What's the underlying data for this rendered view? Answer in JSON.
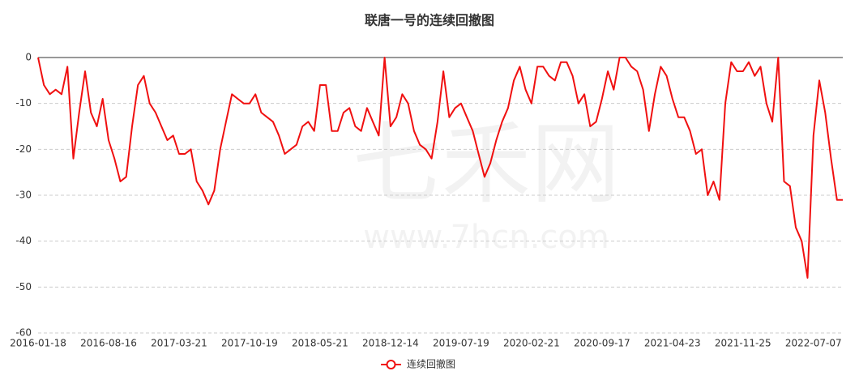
{
  "chart_data": {
    "type": "line",
    "title": "联唐一号的连续回撤图",
    "watermark": "七禾网",
    "watermark_url": "www.7hcn.com",
    "categories": [
      "2016-01-18",
      null,
      null,
      null,
      null,
      null,
      null,
      null,
      null,
      null,
      null,
      null,
      "2016-08-16",
      null,
      null,
      null,
      null,
      null,
      null,
      null,
      null,
      null,
      null,
      null,
      "2017-03-21",
      null,
      null,
      null,
      null,
      null,
      null,
      null,
      null,
      null,
      null,
      null,
      "2017-10-19",
      null,
      null,
      null,
      null,
      null,
      null,
      null,
      null,
      null,
      null,
      null,
      "2018-05-21",
      null,
      null,
      null,
      null,
      null,
      null,
      null,
      null,
      null,
      null,
      null,
      "2018-12-14",
      null,
      null,
      null,
      null,
      null,
      null,
      null,
      null,
      null,
      null,
      null,
      "2019-07-19",
      null,
      null,
      null,
      null,
      null,
      null,
      null,
      null,
      null,
      null,
      null,
      "2020-02-21",
      null,
      null,
      null,
      null,
      null,
      null,
      null,
      null,
      null,
      null,
      null,
      "2020-09-17",
      null,
      null,
      null,
      null,
      null,
      null,
      null,
      null,
      null,
      null,
      null,
      "2021-04-23",
      null,
      null,
      null,
      null,
      null,
      null,
      null,
      null,
      null,
      null,
      null,
      "2021-11-25",
      null,
      null,
      null,
      null,
      null,
      null,
      null,
      null,
      null,
      null,
      null,
      "2022-07-07",
      null,
      null,
      null,
      null,
      null
    ],
    "series": [
      {
        "name": "连续回撤图",
        "color": "#f01010",
        "values": [
          0,
          -6,
          -8,
          -7,
          -8,
          -2,
          -22,
          -12,
          -3,
          -12,
          -15,
          -9,
          -18,
          -22,
          -27,
          -26,
          -15,
          -6,
          -4,
          -10,
          -12,
          -15,
          -18,
          -17,
          -21,
          -21,
          -20,
          -27,
          -29,
          -32,
          -29,
          -20,
          -14,
          -8,
          -9,
          -10,
          -10,
          -8,
          -12,
          -13,
          -14,
          -17,
          -21,
          -20,
          -19,
          -15,
          -14,
          -16,
          -6,
          -6,
          -16,
          -16,
          -12,
          -11,
          -15,
          -16,
          -11,
          -14,
          -17,
          0,
          -15,
          -13,
          -8,
          -10,
          -16,
          -19,
          -20,
          -22,
          -14,
          -3,
          -13,
          -11,
          -10,
          -13,
          -16,
          -21,
          -26,
          -23,
          -18,
          -14,
          -11,
          -5,
          -2,
          -7,
          -10,
          -2,
          -2,
          -4,
          -5,
          -1,
          -1,
          -4,
          -10,
          -8,
          -15,
          -14,
          -9,
          -3,
          -7,
          0,
          0,
          -2,
          -3,
          -7,
          -16,
          -8,
          -2,
          -4,
          -9,
          -13,
          -13,
          -16,
          -21,
          -20,
          -30,
          -27,
          -31,
          -10,
          -1,
          -3,
          -3,
          -1,
          -4,
          -2,
          -10,
          -14,
          0,
          -27,
          -28,
          -37,
          -40,
          -48,
          -17,
          -5,
          -12,
          -22,
          -31,
          -31
        ]
      }
    ],
    "ylim": [
      -60,
      0
    ],
    "yticks": [
      0,
      -10,
      -20,
      -30,
      -40,
      -50,
      -60
    ],
    "grid": true
  }
}
